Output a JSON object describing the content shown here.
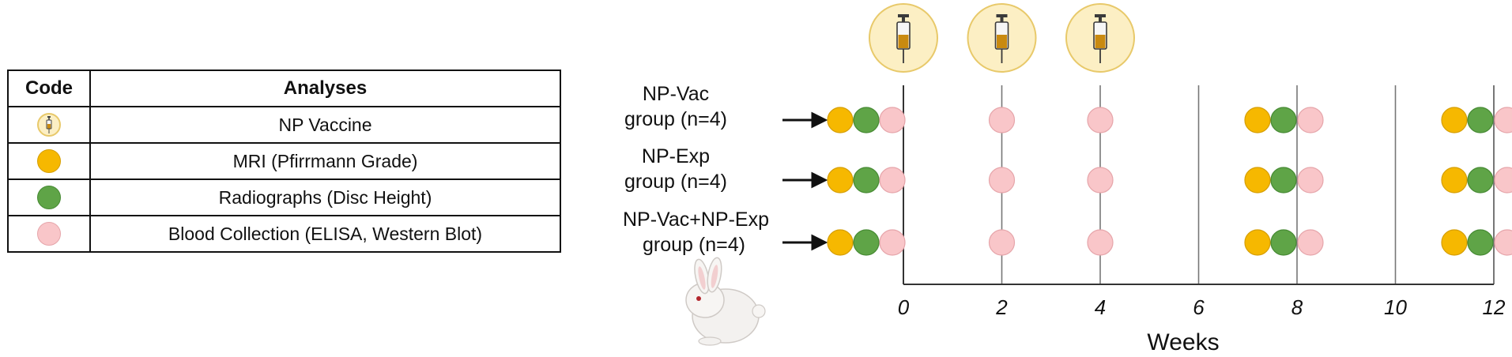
{
  "legend": {
    "header_code": "Code",
    "header_analyses": "Analyses",
    "rows": [
      {
        "code_icon": "syringe-icon",
        "label": "NP Vaccine"
      },
      {
        "code_icon": "orange-dot",
        "label": "MRI (Pfirrmann Grade)"
      },
      {
        "code_icon": "green-dot",
        "label": "Radiographs (Disc Height)"
      },
      {
        "code_icon": "pink-dot",
        "label": "Blood Collection (ELISA, Western Blot)"
      }
    ]
  },
  "groups": [
    {
      "line1": "NP-Vac",
      "line2": "group (n=4)"
    },
    {
      "line1": "NP-Exp",
      "line2": "group (n=4)"
    },
    {
      "line1": "NP-Vac+NP-Exp",
      "line2": "group (n=4)"
    }
  ],
  "timeline": {
    "xlabel": "Weeks",
    "ticks": [
      "0",
      "2",
      "4",
      "6",
      "8",
      "10",
      "12"
    ],
    "vaccine_weeks": [
      0,
      2,
      4
    ],
    "mri_weeks": [
      0,
      8,
      12
    ],
    "radiograph_weeks": [
      0,
      8,
      12
    ],
    "blood_weeks": [
      0,
      2,
      4,
      8,
      12
    ]
  },
  "colors": {
    "mri": "#f6b800",
    "radiograph": "#5fa447",
    "blood": "#f9c6c9",
    "vaccine_bg": "#fcefc4",
    "vaccine_border": "#e8c96a"
  }
}
